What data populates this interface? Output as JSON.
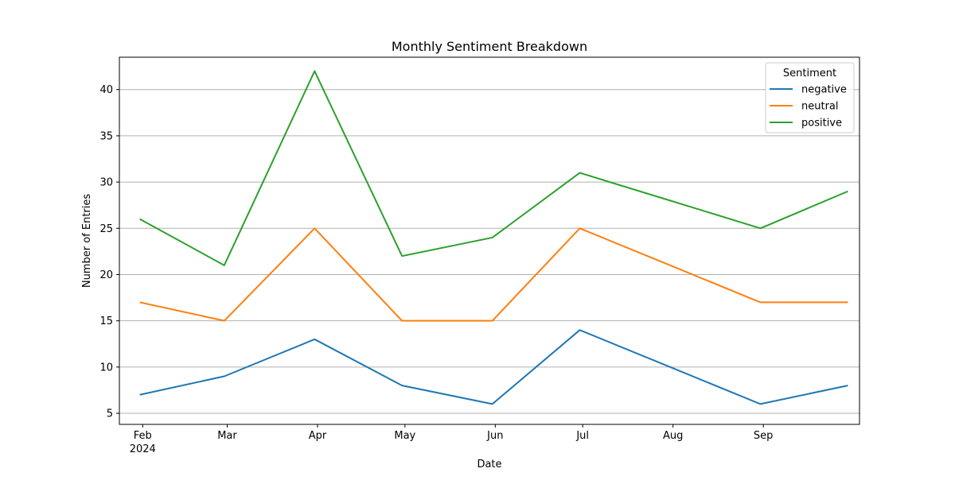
{
  "chart_data": {
    "type": "line",
    "title": "Monthly Sentiment Breakdown",
    "xlabel": "Date",
    "ylabel": "Number of Entries",
    "x": [
      "2024-01-31",
      "2024-02-29",
      "2024-03-31",
      "2024-04-30",
      "2024-05-31",
      "2024-06-30",
      "2024-07-31",
      "2024-08-31",
      "2024-09-30"
    ],
    "x_tick_labels": [
      "Feb",
      "Mar",
      "Apr",
      "May",
      "Jun",
      "Jul",
      "Aug",
      "Sep"
    ],
    "x_tick_dates": [
      "2024-02-01",
      "2024-03-01",
      "2024-04-01",
      "2024-05-01",
      "2024-06-01",
      "2024-07-01",
      "2024-08-01",
      "2024-09-01"
    ],
    "x_tick_year_label": "2024",
    "xlim": [
      "2024-01-24",
      "2024-10-04"
    ],
    "ylim": [
      3.8,
      43.5
    ],
    "y_ticks": [
      5,
      10,
      15,
      20,
      25,
      30,
      35,
      40
    ],
    "grid": "horizontal",
    "legend": {
      "title": "Sentiment",
      "placement": "top-right"
    },
    "series": [
      {
        "name": "negative",
        "color": "#1f77b4",
        "values": [
          7,
          9,
          13,
          8,
          6,
          14,
          10,
          6,
          8
        ]
      },
      {
        "name": "neutral",
        "color": "#ff7f0e",
        "values": [
          17,
          15,
          25,
          15,
          15,
          25,
          21,
          17,
          17
        ]
      },
      {
        "name": "positive",
        "color": "#2ca02c",
        "values": [
          26,
          21,
          42,
          22,
          24,
          31,
          28,
          25,
          29
        ]
      }
    ]
  }
}
